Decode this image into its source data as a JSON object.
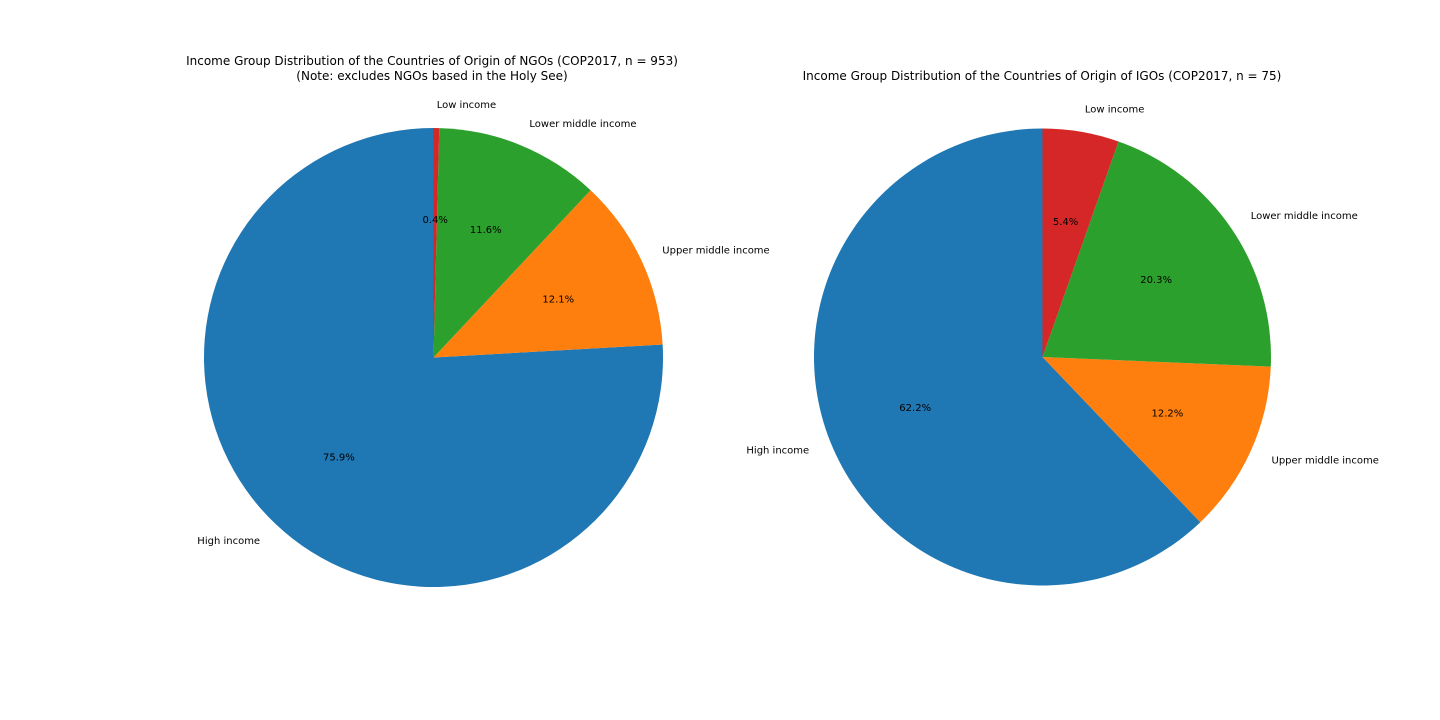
{
  "figure": {
    "background": "#ffffff"
  },
  "chart_data": [
    {
      "type": "pie",
      "title": "Income Group Distribution of the Countries of Origin of NGOs (COP2017, n = 953)",
      "subtitle": "(Note: excludes NGOs based in the Holy See)",
      "start_angle_deg": 90,
      "direction": "counterclockwise",
      "slices": [
        {
          "label": "High income",
          "value": 75.9,
          "pct_label": "75.9%",
          "color": "#1f77b4"
        },
        {
          "label": "Upper middle income",
          "value": 12.1,
          "pct_label": "12.1%",
          "color": "#ff7f0e"
        },
        {
          "label": "Lower middle income",
          "value": 11.6,
          "pct_label": "11.6%",
          "color": "#2ca02c"
        },
        {
          "label": "Low income",
          "value": 0.4,
          "pct_label": "0.4%",
          "color": "#d62728"
        }
      ]
    },
    {
      "type": "pie",
      "title": "Income Group Distribution of the Countries of Origin of IGOs (COP2017, n = 75)",
      "subtitle": "",
      "start_angle_deg": 90,
      "direction": "counterclockwise",
      "slices": [
        {
          "label": "High income",
          "value": 62.2,
          "pct_label": "62.2%",
          "color": "#1f77b4"
        },
        {
          "label": "Upper middle income",
          "value": 12.2,
          "pct_label": "12.2%",
          "color": "#ff7f0e"
        },
        {
          "label": "Lower middle income",
          "value": 20.3,
          "pct_label": "20.3%",
          "color": "#2ca02c"
        },
        {
          "label": "Low income",
          "value": 5.4,
          "pct_label": "5.4%",
          "color": "#d62728"
        }
      ]
    }
  ]
}
